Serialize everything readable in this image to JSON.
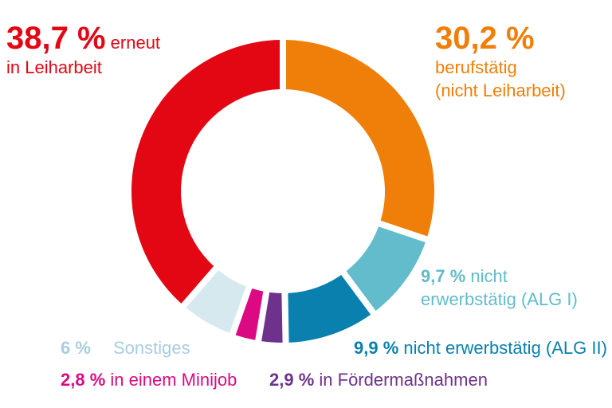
{
  "chart_data": {
    "type": "pie",
    "variant": "donut",
    "segments": [
      {
        "value": 30.2,
        "pct_label": "30,2 %",
        "label_lines": [
          "berufstätig",
          "(nicht Leiharbeit)"
        ],
        "color": "#F07F09"
      },
      {
        "value": 9.7,
        "pct_label": "9,7 %",
        "label_lines": [
          "nicht",
          "erwerbstätig (ALG I)"
        ],
        "color": "#62BCCB"
      },
      {
        "value": 9.9,
        "pct_label": "9,9 %",
        "label_lines": [
          "nicht erwerbstätig (ALG II)"
        ],
        "color": "#0A80AE"
      },
      {
        "value": 2.9,
        "pct_label": "2,9 %",
        "label_lines": [
          "in Fördermaßnahmen"
        ],
        "color": "#6E328C"
      },
      {
        "value": 2.8,
        "pct_label": "2,8 %",
        "label_lines": [
          "in einem Minijob"
        ],
        "color": "#DC0A82"
      },
      {
        "value": 6,
        "pct_label": "6 %",
        "label_lines": [
          "Sonstiges"
        ],
        "color": "#D5E9EF"
      },
      {
        "value": 38.7,
        "pct_label": "38,7 %",
        "label_lines": [
          "erneut",
          "in Leiharbeit"
        ],
        "color": "#E30613"
      }
    ]
  }
}
